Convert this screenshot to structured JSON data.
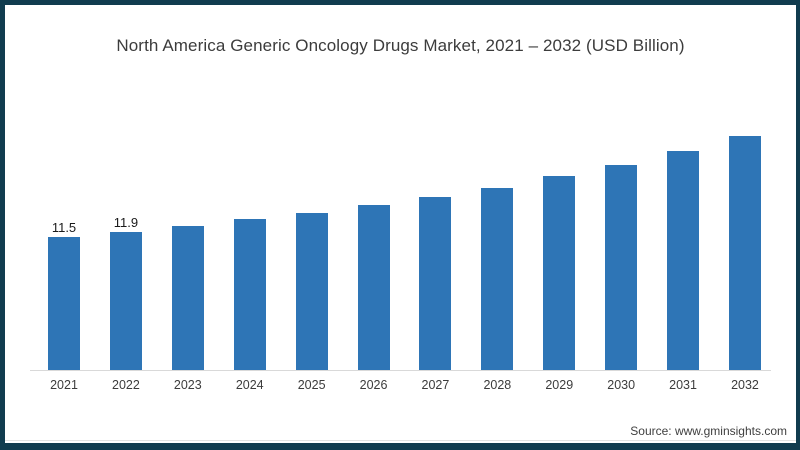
{
  "chart_data": {
    "type": "bar",
    "title": "North America Generic Oncology Drugs Market, 2021 – 2032 (USD Billion)",
    "categories": [
      "2021",
      "2022",
      "2023",
      "2024",
      "2025",
      "2026",
      "2027",
      "2028",
      "2029",
      "2030",
      "2031",
      "2032"
    ],
    "values": [
      11.5,
      11.9,
      12.4,
      13.0,
      13.5,
      14.2,
      14.9,
      15.7,
      16.7,
      17.7,
      18.9,
      20.2
    ],
    "data_labels_shown": [
      "11.5",
      "11.9",
      "",
      "",
      "",
      "",
      "",
      "",
      "",
      "",
      "",
      ""
    ],
    "xlabel": "",
    "ylabel": "",
    "ylim": [
      0,
      21
    ],
    "grid": "off",
    "legend": "none",
    "bar_color": "#2e75b6",
    "axis_line_color": "#d9d9d9"
  },
  "frame": {
    "border_color": "#113c4f",
    "background": "#ffffff"
  },
  "source": {
    "label": "Source: www.gminsights.com"
  }
}
